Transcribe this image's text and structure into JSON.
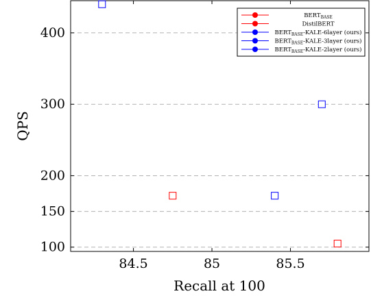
{
  "chart_data": {
    "type": "scatter",
    "xlabel": "Recall at 100",
    "ylabel": "QPS",
    "xlim": [
      84.1,
      86.0
    ],
    "ylim": [
      94,
      445
    ],
    "xticks": [
      84.5,
      85,
      85.5
    ],
    "xtick_labels": [
      "84.5",
      "85",
      "85.5"
    ],
    "yticks": [
      100,
      150,
      200,
      300,
      400
    ],
    "ytick_labels": [
      "100",
      "150",
      "200",
      "300",
      "400"
    ],
    "grid": "horizontal-dashed",
    "legend_position": "top-right",
    "legend": [
      {
        "base": "BERT",
        "sub": "BASE",
        "rest": "",
        "color": "#ff0000"
      },
      {
        "base": "DistilBERT",
        "sub": "",
        "rest": "",
        "color": "#ff0000"
      },
      {
        "base": "BERT",
        "sub": "BASE",
        "rest": "-KALE-6layer (ours)",
        "color": "#0000ff"
      },
      {
        "base": "BERT",
        "sub": "BASE",
        "rest": "-KALE-3layer (ours)",
        "color": "#0000ff"
      },
      {
        "base": "BERT",
        "sub": "BASE",
        "rest": "-KALE-2layer (ours)",
        "color": "#0000ff"
      }
    ],
    "points": [
      {
        "x": 85.8,
        "y": 105,
        "color": "#ff0000"
      },
      {
        "x": 84.75,
        "y": 172,
        "color": "#ff0000"
      },
      {
        "x": 85.7,
        "y": 300,
        "color": "#0000ff"
      },
      {
        "x": 85.4,
        "y": 172,
        "color": "#0000ff"
      },
      {
        "x": 84.3,
        "y": 440,
        "color": "#0000ff"
      }
    ]
  }
}
